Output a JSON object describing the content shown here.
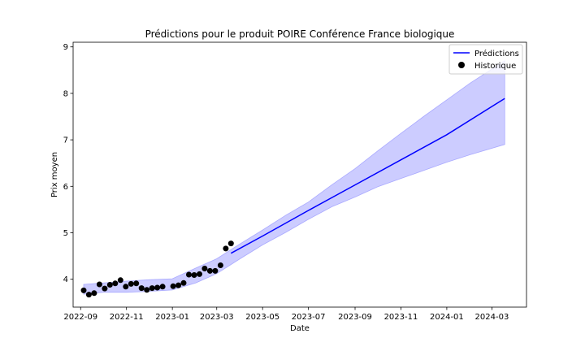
{
  "chart_data": {
    "type": "line",
    "title": "Prédictions pour le produit POIRE Conférence France biologique",
    "xlabel": "Date",
    "ylabel": "Prix moyen",
    "xlim": [
      "2022-08-22",
      "2024-04-16"
    ],
    "ylim": [
      3.4,
      9.1
    ],
    "x_ticks": [
      "2022-09",
      "2022-11",
      "2023-01",
      "2023-03",
      "2023-05",
      "2023-07",
      "2023-09",
      "2023-11",
      "2024-01",
      "2024-03"
    ],
    "y_ticks": [
      4,
      5,
      6,
      7,
      8,
      9
    ],
    "grid": false,
    "legend": {
      "position": "top-right",
      "entries": [
        "Prédictions",
        "Historique"
      ]
    },
    "colors": {
      "prediction_line": "#0000ff",
      "band_fill": "#ccccff",
      "band_edge": "#aaaaff",
      "historic_points": "#000000"
    },
    "series": [
      {
        "name": "Historique",
        "kind": "scatter",
        "x": [
          "2022-09-05",
          "2022-09-12",
          "2022-09-19",
          "2022-09-26",
          "2022-10-03",
          "2022-10-10",
          "2022-10-17",
          "2022-10-24",
          "2022-10-31",
          "2022-11-07",
          "2022-11-14",
          "2022-11-21",
          "2022-11-28",
          "2022-12-05",
          "2022-12-12",
          "2022-12-19",
          "2023-01-02",
          "2023-01-09",
          "2023-01-16",
          "2023-01-23",
          "2023-01-30",
          "2023-02-06",
          "2023-02-13",
          "2023-02-20",
          "2023-02-27",
          "2023-03-06",
          "2023-03-13",
          "2023-03-20"
        ],
        "y": [
          3.76,
          3.67,
          3.7,
          3.89,
          3.8,
          3.88,
          3.91,
          3.98,
          3.84,
          3.9,
          3.91,
          3.81,
          3.77,
          3.81,
          3.82,
          3.84,
          3.85,
          3.87,
          3.92,
          4.1,
          4.09,
          4.11,
          4.23,
          4.18,
          4.18,
          4.3,
          4.66,
          4.77
        ]
      },
      {
        "name": "Prédictions",
        "kind": "line",
        "x": [
          "2023-03-20",
          "2023-05-01",
          "2023-07-01",
          "2023-09-01",
          "2023-11-01",
          "2024-01-01",
          "2024-03-18"
        ],
        "y": [
          4.56,
          4.93,
          5.48,
          6.03,
          6.57,
          7.11,
          7.89
        ]
      }
    ],
    "confidence_band": {
      "x": [
        "2022-09-05",
        "2022-10-01",
        "2022-11-01",
        "2022-12-01",
        "2023-01-01",
        "2023-02-01",
        "2023-03-01",
        "2023-04-01",
        "2023-05-01",
        "2023-06-01",
        "2023-07-01",
        "2023-08-01",
        "2023-09-01",
        "2023-10-01",
        "2023-11-01",
        "2023-12-01",
        "2024-01-01",
        "2024-02-01",
        "2024-03-18"
      ],
      "lower": [
        3.68,
        3.72,
        3.72,
        3.74,
        3.77,
        3.92,
        4.12,
        4.44,
        4.74,
        5.01,
        5.29,
        5.56,
        5.77,
        5.99,
        6.17,
        6.34,
        6.52,
        6.68,
        6.9
      ],
      "upper": [
        3.89,
        3.92,
        3.96,
        3.99,
        4.01,
        4.24,
        4.44,
        4.76,
        5.06,
        5.38,
        5.66,
        6.03,
        6.38,
        6.76,
        7.14,
        7.5,
        7.86,
        8.22,
        8.7
      ]
    }
  }
}
